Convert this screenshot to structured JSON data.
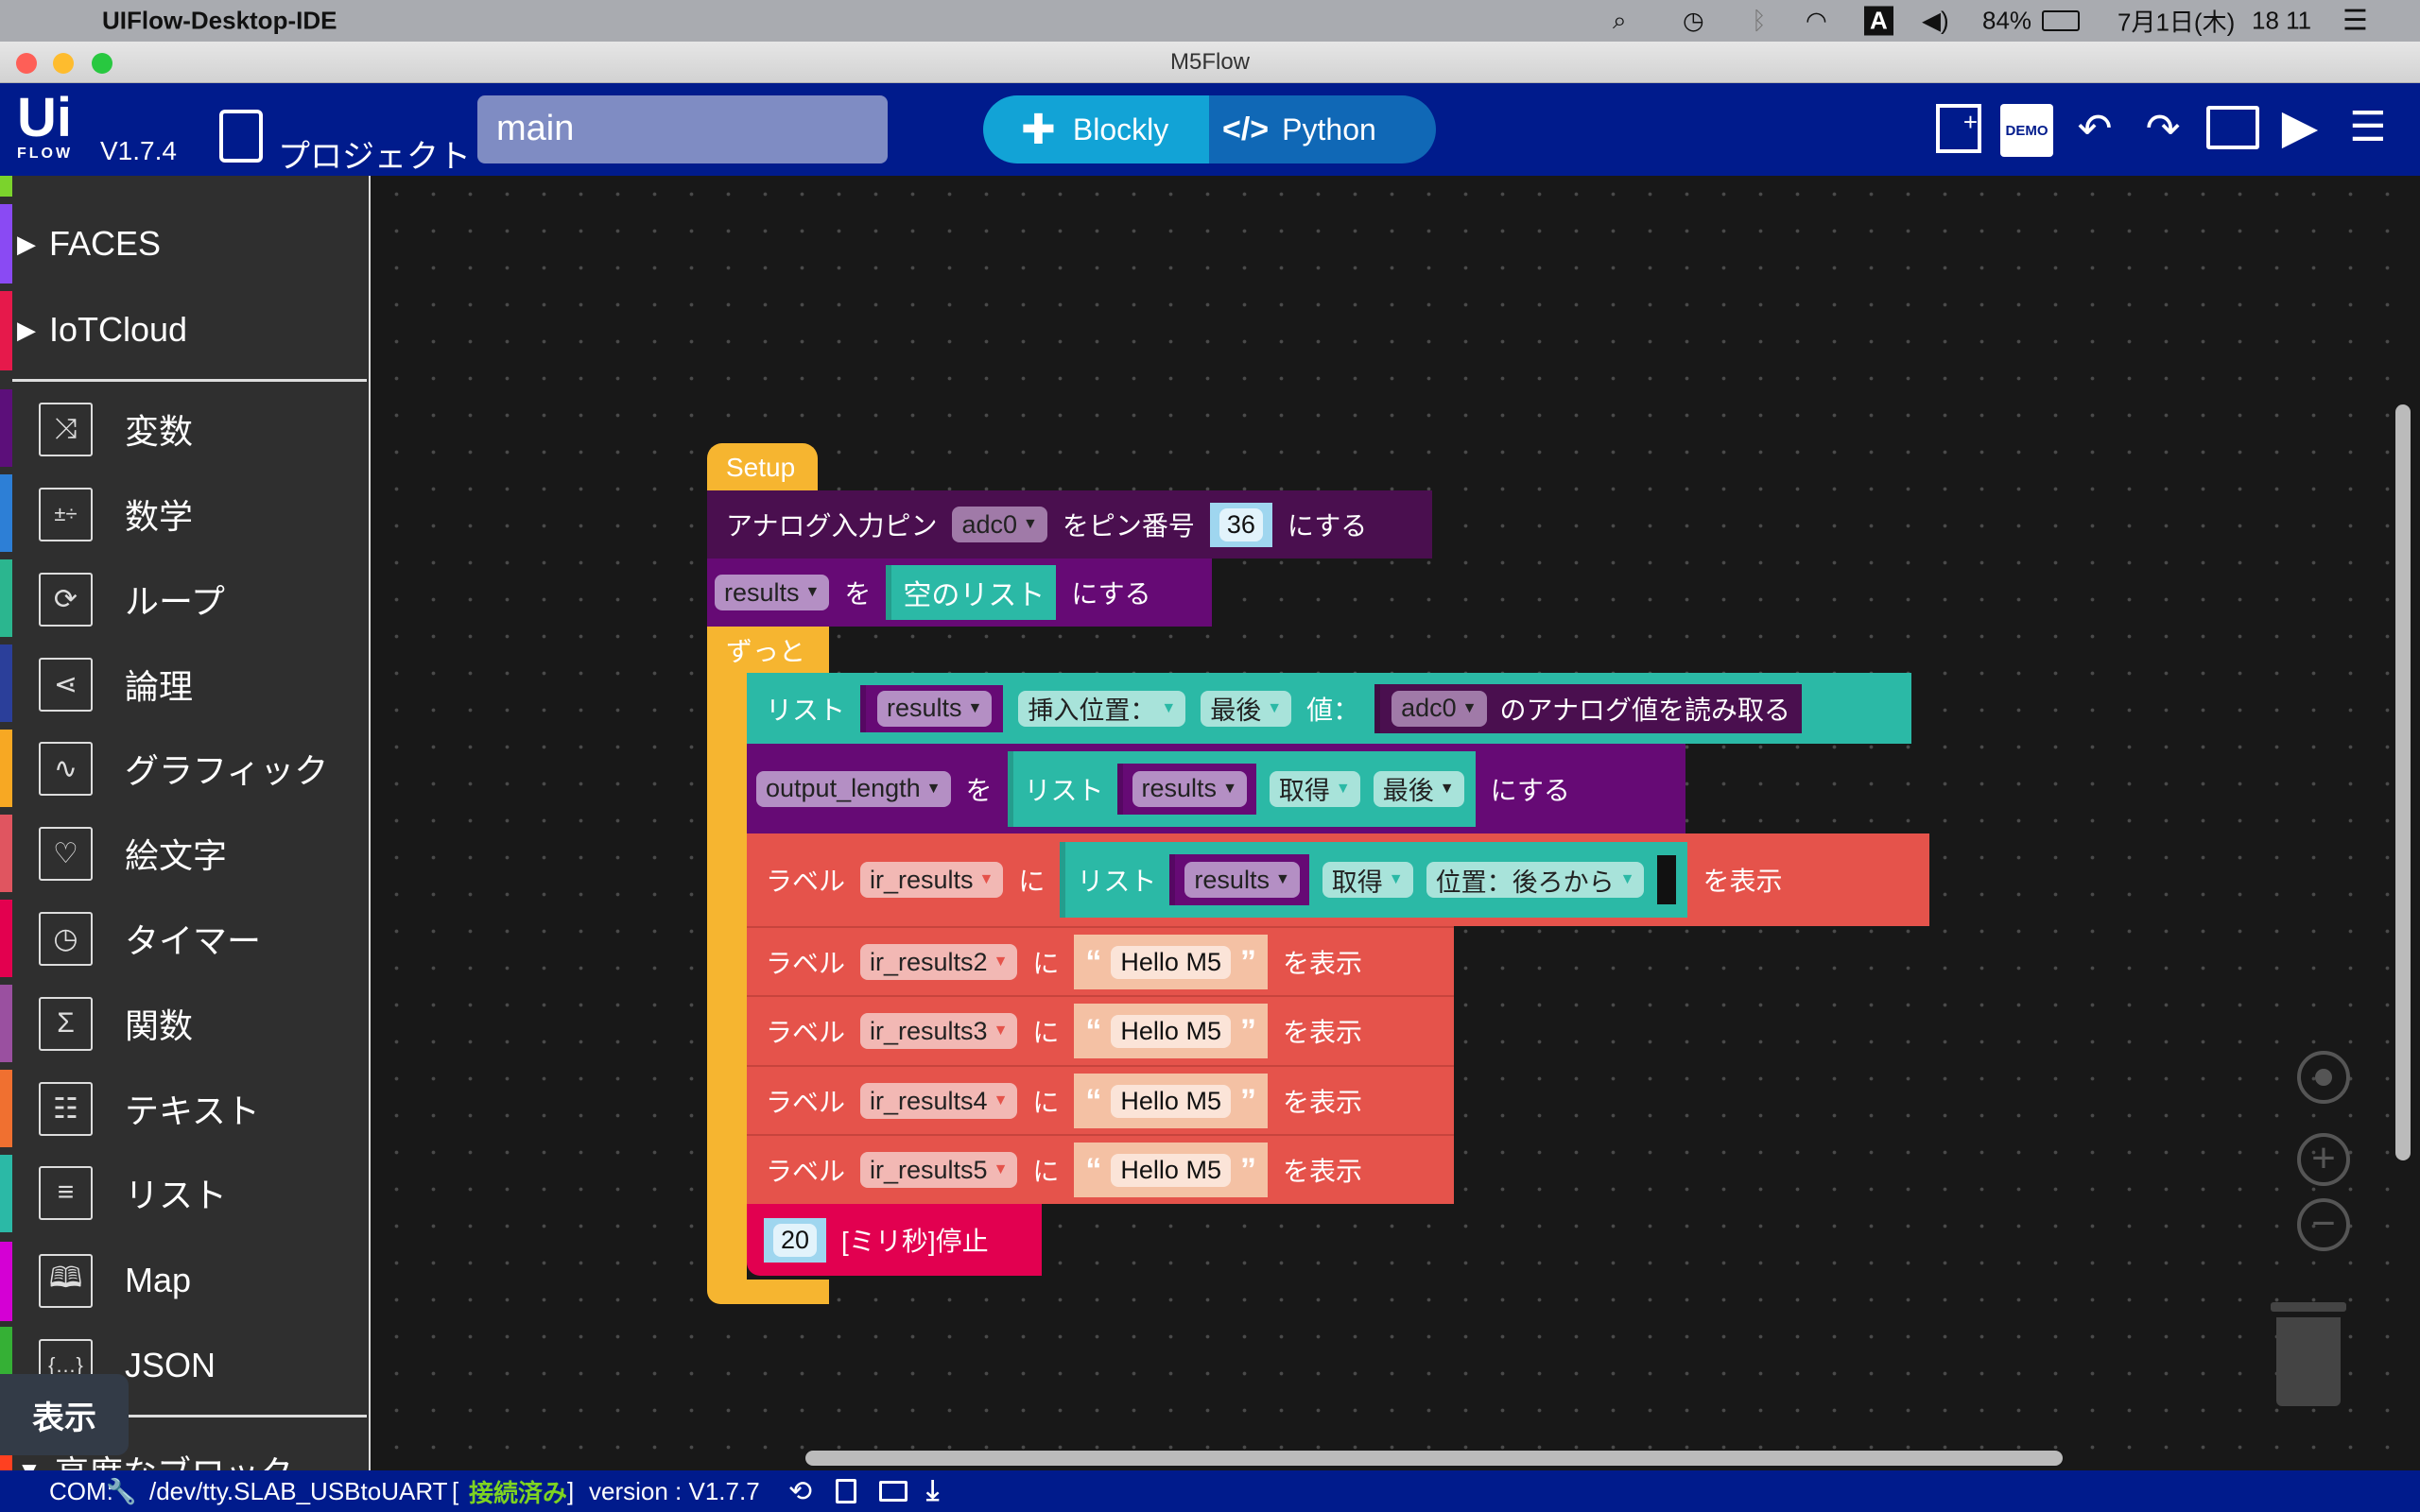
{
  "menubar": {
    "app_name": "UIFlow-Desktop-IDE",
    "input_indicator": "A",
    "battery": "84%",
    "date": "7月1日(木)",
    "time": "18 11"
  },
  "window": {
    "title": "M5Flow"
  },
  "header": {
    "logo": "Ui FLOW",
    "version": "V1.7.4",
    "project_label": "プロジェクト",
    "file_name": "main",
    "blockly_label": "Blockly",
    "python_label": "Python",
    "demo_label": "DEMO"
  },
  "sidebar": {
    "groups": [
      {
        "label": "FACES",
        "color": "#8a4af3"
      },
      {
        "label": "IoTCloud",
        "color": "#e6194b"
      }
    ],
    "items": [
      {
        "label": "変数",
        "icon": "shuffle-icon",
        "color": "#5c0f7a"
      },
      {
        "label": "数学",
        "icon": "math-icon",
        "color": "#2d7fd6"
      },
      {
        "label": "ループ",
        "icon": "loop-icon",
        "color": "#2bb68f"
      },
      {
        "label": "論理",
        "icon": "logic-icon",
        "color": "#2b3f9a"
      },
      {
        "label": "グラフィック",
        "icon": "graph-icon",
        "color": "#f7a823"
      },
      {
        "label": "絵文字",
        "icon": "heart-icon",
        "color": "#e05560"
      },
      {
        "label": "タイマー",
        "icon": "timer-icon",
        "color": "#e3004f"
      },
      {
        "label": "関数",
        "icon": "sigma-icon",
        "color": "#9a50a0"
      },
      {
        "label": "テキスト",
        "icon": "text-icon",
        "color": "#f07030"
      },
      {
        "label": "リスト",
        "icon": "list-icon",
        "color": "#2bb9a6"
      },
      {
        "label": "Map",
        "icon": "book-icon",
        "color": "#d400d4"
      },
      {
        "label": "JSON",
        "icon": "braces-icon",
        "color": "#35b035"
      }
    ],
    "advanced": {
      "label": "高度なブロック",
      "color": "#ff4020"
    },
    "tooltip": "表示"
  },
  "blocks": {
    "setup": "Setup",
    "analog": {
      "prefix": "アナログ入力ピン",
      "var": "adc0",
      "mid": "をピン番号",
      "pin": "36",
      "suffix": "にする"
    },
    "set_results": {
      "var": "results",
      "wo": "を",
      "value": "空のリスト",
      "suffix": "にする"
    },
    "loop": "ずっと",
    "insert": {
      "list": "リスト",
      "var": "results",
      "mode": "挿入位置：",
      "where": "最後",
      "value_label": "値：",
      "adc": "adc0",
      "read": "のアナログ値を読み取る"
    },
    "set_output": {
      "var": "output_length",
      "wo": "を",
      "list": "リスト",
      "lvar": "results",
      "op": "取得",
      "where": "最後",
      "suffix": "にする"
    },
    "label_main": {
      "label": "ラベル",
      "var": "ir_results",
      "ni": "に",
      "list": "リスト",
      "lvar": "results",
      "op": "取得",
      "where": "位置：後ろから",
      "suffix": "を表示"
    },
    "labels": [
      {
        "label": "ラベル",
        "var": "ir_results2",
        "ni": "に",
        "text": "Hello M5",
        "suffix": "を表示"
      },
      {
        "label": "ラベル",
        "var": "ir_results3",
        "ni": "に",
        "text": "Hello M5",
        "suffix": "を表示"
      },
      {
        "label": "ラベル",
        "var": "ir_results4",
        "ni": "に",
        "text": "Hello M5",
        "suffix": "を表示"
      },
      {
        "label": "ラベル",
        "var": "ir_results5",
        "ni": "に",
        "text": "Hello M5",
        "suffix": "を表示"
      }
    ],
    "quote_open": "“",
    "quote_close": "”",
    "wait": {
      "ms": "20",
      "label": "[ミリ秒]停止"
    }
  },
  "statusbar": {
    "com_label": "COM:",
    "port": "/dev/tty.SLAB_USBtoUART",
    "bracket_open": "[",
    "status": "接続済み",
    "bracket_close": "]",
    "version": "version : V1.7.7",
    "status_color": "#7ed321"
  },
  "colors": {
    "header": "#001b8c",
    "block_setup": "#f6b530",
    "block_analog": "#4a0f4f",
    "block_var": "#660a75",
    "block_list": "#2bb9a6",
    "block_label": "#e5534b",
    "block_wait": "#e20050"
  }
}
